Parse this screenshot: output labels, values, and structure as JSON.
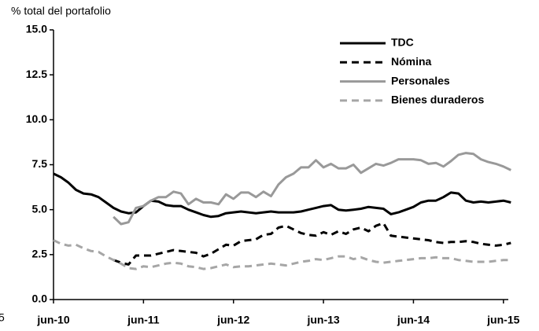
{
  "chart_data": {
    "type": "line",
    "y_label": "% total del portafolio",
    "annotations": [
      "5"
    ],
    "categories": [
      "jun-10",
      null,
      null,
      null,
      null,
      null,
      null,
      null,
      null,
      null,
      null,
      null,
      "jun-11",
      null,
      null,
      null,
      null,
      null,
      null,
      null,
      null,
      null,
      null,
      null,
      "jun-12",
      null,
      null,
      null,
      null,
      null,
      null,
      null,
      null,
      null,
      null,
      null,
      "jun-13",
      null,
      null,
      null,
      null,
      null,
      null,
      null,
      null,
      null,
      null,
      null,
      "jun-14",
      null,
      null,
      null,
      null,
      null,
      null,
      null,
      null,
      null,
      null,
      null,
      "jun-15",
      null
    ],
    "series": [
      {
        "name": "TDC",
        "color": "#000000",
        "dash": false,
        "values": [
          7.0,
          6.8,
          6.5,
          6.1,
          5.9,
          5.85,
          5.7,
          5.4,
          5.1,
          4.9,
          4.8,
          4.85,
          5.2,
          5.5,
          5.45,
          5.25,
          5.2,
          5.2,
          5.0,
          4.85,
          4.7,
          4.6,
          4.65,
          4.8,
          4.85,
          4.9,
          4.85,
          4.8,
          4.85,
          4.9,
          4.85,
          4.85,
          4.85,
          4.9,
          5.0,
          5.1,
          5.2,
          5.25,
          5.0,
          4.95,
          5.0,
          5.05,
          5.15,
          5.1,
          5.05,
          4.75,
          4.85,
          5.0,
          5.15,
          5.4,
          5.5,
          5.5,
          5.7,
          5.95,
          5.9,
          5.5,
          5.4,
          5.45,
          5.4,
          5.45,
          5.5,
          5.4
        ]
      },
      {
        "name": "Nómina",
        "color": "#000000",
        "dash": true,
        "values": [
          null,
          null,
          null,
          null,
          null,
          null,
          null,
          null,
          2.2,
          2.05,
          1.95,
          2.45,
          2.45,
          2.45,
          2.55,
          2.65,
          2.75,
          2.7,
          2.65,
          2.6,
          2.4,
          2.55,
          2.8,
          3.05,
          3.0,
          3.25,
          3.3,
          3.35,
          3.6,
          3.65,
          4.0,
          4.1,
          3.9,
          3.7,
          3.6,
          3.55,
          3.75,
          3.6,
          3.8,
          3.65,
          3.9,
          4.0,
          3.8,
          4.1,
          4.25,
          3.55,
          3.5,
          3.45,
          3.4,
          3.35,
          3.3,
          3.2,
          3.15,
          3.2,
          3.2,
          3.25,
          3.2,
          3.1,
          3.05,
          3.0,
          3.05,
          3.15
        ]
      },
      {
        "name": "Personales",
        "color": "#999999",
        "dash": false,
        "values": [
          null,
          null,
          null,
          null,
          null,
          null,
          null,
          null,
          4.6,
          4.2,
          4.3,
          5.1,
          5.2,
          5.5,
          5.7,
          5.7,
          6.0,
          5.9,
          5.3,
          5.6,
          5.4,
          5.4,
          5.3,
          5.85,
          5.6,
          5.95,
          5.95,
          5.7,
          6.0,
          5.75,
          6.4,
          6.8,
          7.0,
          7.35,
          7.35,
          7.75,
          7.35,
          7.55,
          7.3,
          7.3,
          7.5,
          7.05,
          7.3,
          7.55,
          7.45,
          7.6,
          7.8,
          7.8,
          7.8,
          7.75,
          7.55,
          7.6,
          7.4,
          7.7,
          8.05,
          8.15,
          8.1,
          7.8,
          7.65,
          7.55,
          7.4,
          7.2
        ]
      },
      {
        "name": "Bienes duraderos",
        "color": "#a6a6a6",
        "dash": true,
        "values": [
          3.3,
          3.1,
          3.0,
          3.05,
          2.85,
          2.7,
          2.65,
          2.4,
          2.2,
          2.0,
          1.75,
          1.7,
          1.85,
          1.8,
          1.9,
          2.0,
          2.05,
          2.0,
          1.85,
          1.8,
          1.7,
          1.75,
          1.85,
          1.95,
          1.8,
          1.85,
          1.85,
          1.9,
          1.95,
          2.0,
          1.95,
          1.9,
          2.0,
          2.1,
          2.15,
          2.25,
          2.2,
          2.3,
          2.4,
          2.4,
          2.25,
          2.35,
          2.2,
          2.1,
          2.05,
          2.1,
          2.15,
          2.2,
          2.25,
          2.3,
          2.3,
          2.35,
          2.3,
          2.3,
          2.2,
          2.15,
          2.1,
          2.1,
          2.1,
          2.15,
          2.2,
          2.2
        ]
      }
    ],
    "ylim": [
      0,
      15
    ],
    "yticks": [
      {
        "value": 0,
        "label": "0.0"
      },
      {
        "value": 2.5,
        "label": "2.5"
      },
      {
        "value": 5,
        "label": "5.0"
      },
      {
        "value": 7.5,
        "label": "7.5"
      },
      {
        "value": 10,
        "label": "10.0"
      },
      {
        "value": 12.5,
        "label": "12.5"
      },
      {
        "value": 15,
        "label": "15.0"
      }
    ],
    "grid": false,
    "legend": "upper-right"
  }
}
